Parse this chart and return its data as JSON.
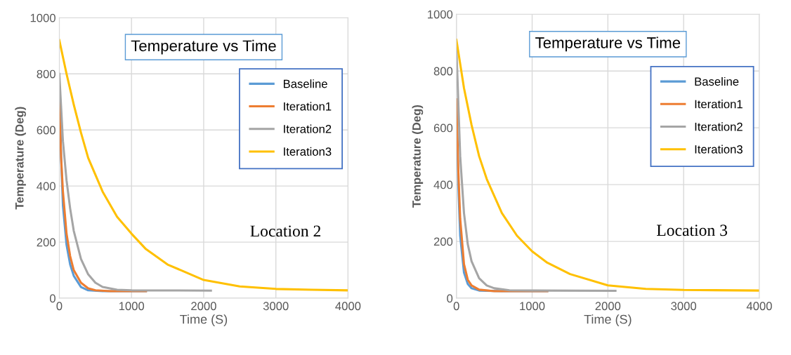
{
  "chart_data": [
    {
      "type": "line",
      "title": "Temperature vs Time",
      "xlabel": "Time (S)",
      "ylabel": "Temperature (Deg)",
      "xlim": [
        0,
        4000
      ],
      "xticks": [
        0,
        1000,
        2000,
        3000,
        4000
      ],
      "ylim": [
        0,
        1000
      ],
      "yticks": [
        0,
        200,
        400,
        600,
        800,
        1000
      ],
      "grid": true,
      "legend": "right",
      "annotations": [
        "Location 2"
      ],
      "series": [
        {
          "name": "Baseline",
          "color": "#5b9bd5",
          "x": [
            0,
            25,
            50,
            100,
            150,
            200,
            300,
            400,
            600,
            1000,
            1200
          ],
          "values": [
            750,
            500,
            330,
            190,
            120,
            80,
            40,
            28,
            25,
            25,
            25
          ]
        },
        {
          "name": "Iteration1",
          "color": "#ed7d31",
          "x": [
            0,
            25,
            50,
            100,
            150,
            200,
            300,
            400,
            500,
            700,
            1200
          ],
          "values": [
            700,
            500,
            380,
            230,
            150,
            100,
            55,
            35,
            28,
            25,
            25
          ]
        },
        {
          "name": "Iteration2",
          "color": "#a5a5a5",
          "x": [
            0,
            50,
            100,
            150,
            200,
            300,
            400,
            500,
            600,
            800,
            1000,
            2100
          ],
          "values": [
            800,
            560,
            420,
            320,
            240,
            140,
            85,
            55,
            40,
            30,
            28,
            27
          ]
        },
        {
          "name": "Iteration3",
          "color": "#ffc000",
          "x": [
            0,
            100,
            200,
            300,
            400,
            500,
            600,
            800,
            1000,
            1200,
            1500,
            2000,
            2500,
            3000,
            3500,
            4000
          ],
          "values": [
            920,
            800,
            690,
            590,
            500,
            440,
            380,
            290,
            230,
            175,
            120,
            65,
            42,
            33,
            30,
            28
          ]
        }
      ]
    },
    {
      "type": "line",
      "title": "Temperature vs Time",
      "xlabel": "Time (S)",
      "ylabel": "Temperature (Deg)",
      "xlim": [
        0,
        4000
      ],
      "xticks": [
        0,
        1000,
        2000,
        3000,
        4000
      ],
      "ylim": [
        0,
        1000
      ],
      "yticks": [
        0,
        200,
        400,
        600,
        800,
        1000
      ],
      "grid": true,
      "legend": "right",
      "annotations": [
        "Location 3"
      ],
      "series": [
        {
          "name": "Baseline",
          "color": "#5b9bd5",
          "x": [
            0,
            25,
            50,
            100,
            150,
            200,
            300,
            600,
            1200
          ],
          "values": [
            700,
            400,
            220,
            90,
            50,
            35,
            27,
            25,
            25
          ]
        },
        {
          "name": "Iteration1",
          "color": "#ed7d31",
          "x": [
            0,
            25,
            50,
            100,
            150,
            200,
            300,
            500,
            1200
          ],
          "values": [
            700,
            450,
            280,
            120,
            65,
            45,
            30,
            25,
            25
          ]
        },
        {
          "name": "Iteration2",
          "color": "#a5a5a5",
          "x": [
            0,
            50,
            100,
            150,
            200,
            300,
            400,
            500,
            700,
            1000,
            2100
          ],
          "values": [
            880,
            500,
            300,
            190,
            130,
            70,
            45,
            35,
            28,
            27,
            26
          ]
        },
        {
          "name": "Iteration3",
          "color": "#ffc000",
          "x": [
            0,
            100,
            200,
            300,
            400,
            500,
            600,
            800,
            1000,
            1200,
            1500,
            2000,
            2500,
            3000,
            4000
          ],
          "values": [
            910,
            740,
            610,
            500,
            420,
            360,
            300,
            220,
            165,
            125,
            85,
            45,
            33,
            29,
            27
          ]
        }
      ]
    }
  ]
}
